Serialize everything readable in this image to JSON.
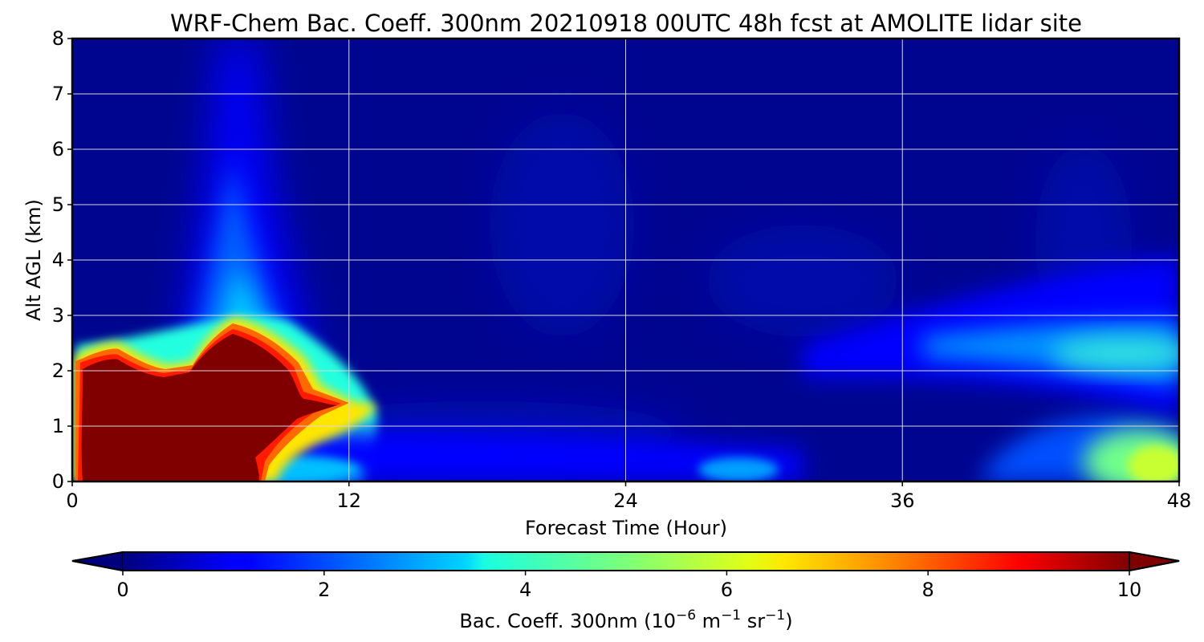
{
  "chart_data": {
    "type": "heatmap",
    "title": "WRF-Chem Bac. Coeff. 300nm  20210918 00UTC 48h fcst at AMOLITE lidar site",
    "xlabel": "Forecast Time (Hour)",
    "ylabel": "Alt AGL (km)",
    "xlim": [
      0,
      48
    ],
    "ylim": [
      0,
      8
    ],
    "xticks": [
      "0",
      "12",
      "24",
      "36",
      "48"
    ],
    "xtick_values": [
      0,
      12,
      24,
      36,
      48
    ],
    "yticks": [
      "0",
      "1",
      "2",
      "3",
      "4",
      "5",
      "6",
      "7",
      "8"
    ],
    "ytick_values": [
      0,
      1,
      2,
      3,
      4,
      5,
      6,
      7,
      8
    ],
    "grid": true,
    "colormap": "jet",
    "colorbar": {
      "label_main": "Bac. Coeff. 300nm  (10",
      "label_exp1": "−6",
      "label_mid": " m",
      "label_exp2": "−1",
      "label_mid2": " sr",
      "label_exp3": "−1",
      "label_end": ")",
      "range": [
        0,
        10
      ],
      "extend": "both",
      "ticks": [
        "0",
        "2",
        "4",
        "6",
        "8",
        "10"
      ],
      "tick_values": [
        0,
        2,
        4,
        6,
        8,
        10
      ]
    },
    "features": [
      {
        "description": "dense aerosol layer",
        "x_range": [
          0,
          12.5
        ],
        "y_range": [
          0,
          2.9
        ],
        "value": 10
      },
      {
        "description": "secondary layer",
        "x_range": [
          36,
          48
        ],
        "y_range": [
          1.8,
          2.6
        ],
        "value": 3.5
      },
      {
        "description": "near-surface layer",
        "x_range": [
          44,
          48
        ],
        "y_range": [
          0,
          1.1
        ],
        "value": 5.5
      }
    ]
  }
}
